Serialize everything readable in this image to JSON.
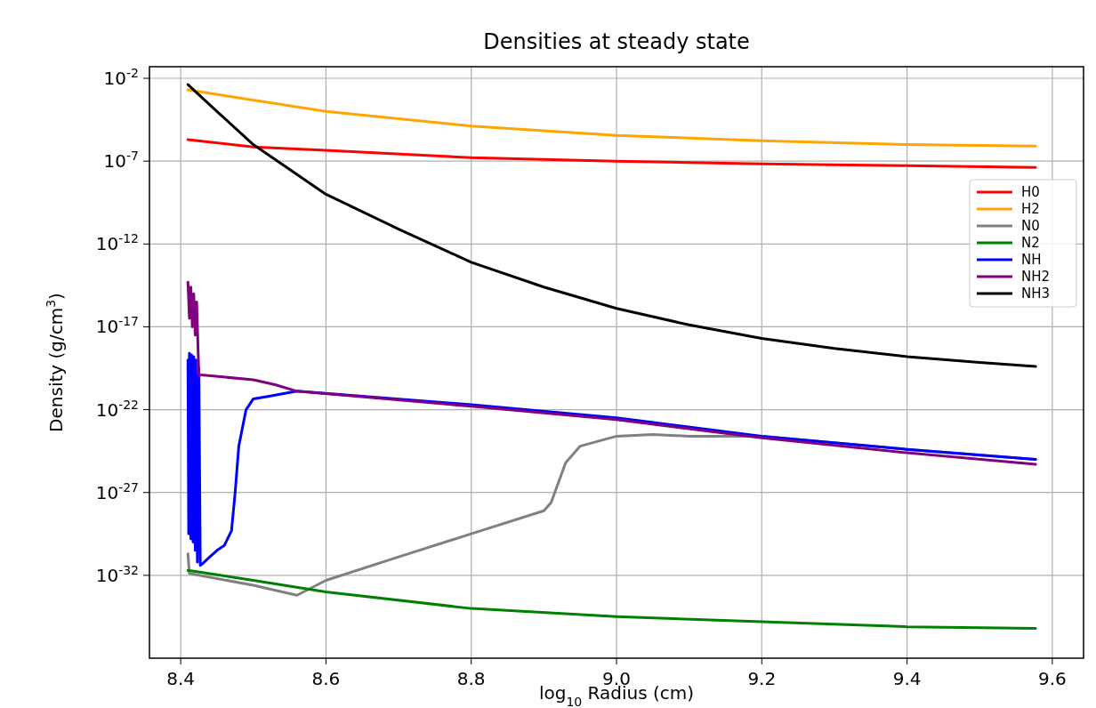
{
  "chart_data": {
    "type": "line",
    "title": "Densities at steady state",
    "xlabel": "log$_{10}$ Radius (cm)",
    "ylabel": "Density (g/cm$^{3}$)",
    "log": "y",
    "grid": true,
    "legend": "right",
    "line_style": "solid",
    "marker": "none",
    "xlim": [
      8.357,
      9.643
    ],
    "ylim": [
      1e-37,
      0.05
    ],
    "xticks": [
      8.4,
      8.6,
      8.8,
      {
        "value": 9,
        "label": "9.0"
      },
      9.2,
      9.4,
      9.6
    ],
    "yticks": [
      {
        "value": 0.01,
        "label": "10$^{-2}$"
      },
      {
        "value": 1e-07,
        "label": "10$^{-7}$"
      },
      {
        "value": 1e-12,
        "label": "10$^{-12}$"
      },
      {
        "value": 1e-17,
        "label": "10$^{-17}$"
      },
      {
        "value": 1e-22,
        "label": "10$^{-22}$"
      },
      {
        "value": 1e-27,
        "label": "10$^{-27}$"
      },
      {
        "value": 1e-32,
        "label": "10$^{-32}$"
      }
    ],
    "series": [
      {
        "name": "H0",
        "color": "#ff0000",
        "x": [
          8.41,
          8.5,
          8.6,
          8.8,
          9.0,
          9.2,
          9.4,
          9.577
        ],
        "values": [
          2e-06,
          7.2e-07,
          4.5e-07,
          1.6e-07,
          1e-07,
          6.9e-08,
          5.4e-08,
          4.2e-08
        ]
      },
      {
        "name": "H2",
        "color": "#ffa500",
        "x": [
          8.41,
          8.6,
          8.8,
          9.0,
          9.2,
          9.4,
          9.577
        ],
        "values": [
          0.002,
          0.0001,
          1.3e-05,
          3.6e-06,
          1.7e-06,
          1e-06,
          8e-07
        ]
      },
      {
        "name": "N0",
        "color": "#808080",
        "x": [
          8.41,
          8.412,
          8.5,
          8.56,
          8.6,
          8.7,
          8.8,
          8.9,
          8.91,
          8.93,
          8.95,
          9.0,
          9.05,
          9.1,
          9.2,
          9.4,
          9.577
        ],
        "values": [
          2e-31,
          1.3e-32,
          2.5e-33,
          6.3e-34,
          5e-33,
          1.3e-31,
          3.2e-30,
          7.9e-29,
          2.5e-28,
          6.3e-26,
          6.3e-25,
          2.5e-24,
          3.2e-24,
          2.5e-24,
          2.5e-24,
          4e-25,
          1e-25
        ]
      },
      {
        "name": "N2",
        "color": "#008000",
        "x": [
          8.41,
          8.5,
          8.6,
          8.8,
          9.0,
          9.2,
          9.4,
          9.577
        ],
        "values": [
          2e-32,
          5e-33,
          1e-33,
          1e-34,
          3.2e-35,
          1.6e-35,
          7.9e-36,
          6.3e-36
        ]
      },
      {
        "name": "NH",
        "color": "#0000ff",
        "x": [
          8.41,
          8.411,
          8.412,
          8.414,
          8.415,
          8.417,
          8.418,
          8.42,
          8.421,
          8.423,
          8.425,
          8.427,
          8.43,
          8.44,
          8.45,
          8.46,
          8.47,
          8.475,
          8.48,
          8.49,
          8.5,
          8.52,
          8.56,
          8.8,
          9.0,
          9.2,
          9.4,
          9.577
        ],
        "values": [
          1e-19,
          3.2e-30,
          2.5e-19,
          1.6e-30,
          2e-19,
          1e-30,
          1.6e-19,
          3.2e-31,
          1e-19,
          6.3e-32,
          3.2e-20,
          4e-32,
          5e-32,
          1.3e-31,
          3.2e-31,
          6.3e-31,
          5e-30,
          1e-27,
          6.3e-25,
          1e-22,
          4.5e-22,
          6.3e-22,
          1.3e-21,
          2e-22,
          3.2e-23,
          2.5e-24,
          4e-25,
          1e-25
        ]
      },
      {
        "name": "NH2",
        "color": "#800080",
        "x": [
          8.41,
          8.412,
          8.414,
          8.416,
          8.418,
          8.42,
          8.422,
          8.424,
          8.425,
          8.5,
          8.53,
          8.56,
          8.8,
          9.0,
          9.2,
          9.4,
          9.577
        ],
        "values": [
          5e-15,
          3.2e-17,
          2.5e-15,
          1e-17,
          1e-15,
          3.2e-18,
          3.2e-16,
          3.2e-19,
          1.3e-20,
          6.3e-21,
          3.2e-21,
          1.3e-21,
          1.6e-22,
          2.5e-23,
          2e-24,
          2.5e-25,
          5e-26
        ]
      },
      {
        "name": "NH3",
        "color": "#000000",
        "x": [
          8.41,
          8.45,
          8.5,
          8.6,
          8.7,
          8.8,
          8.9,
          9.0,
          9.1,
          9.2,
          9.3,
          9.4,
          9.5,
          9.577
        ],
        "values": [
          0.0042,
          0.0001,
          1e-06,
          1e-09,
          7.9e-12,
          7.9e-14,
          2.5e-15,
          1.3e-16,
          1.3e-17,
          2e-18,
          5e-19,
          1.6e-19,
          7e-20,
          4e-20
        ]
      }
    ]
  }
}
